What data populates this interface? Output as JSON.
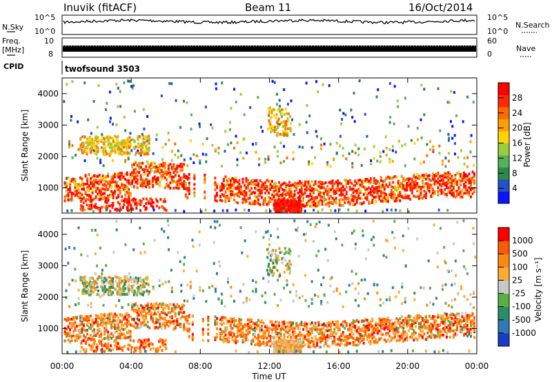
{
  "header": {
    "station": "Inuvik (fitACF)",
    "beam": "Beam 11",
    "date": "16/Oct/2014"
  },
  "status_panel": {
    "nsky_label": "N.Sky",
    "nsearch_label": "N.Search",
    "nsky_ticks": [
      "10^5",
      "10^0"
    ],
    "nsearch_ticks": [
      "10^5",
      "10^0"
    ],
    "freq_label_top": "Freq.",
    "freq_label_unit": "[MHz]",
    "freq_ticks": [
      "10",
      "8"
    ],
    "nave_label": "Nave",
    "nave_ticks": [
      "60",
      "0"
    ],
    "cpid_label": "CPID",
    "cpid_value": "twofsound 3503"
  },
  "chart_data": [
    {
      "type": "heatmap",
      "panel": "power",
      "ylabel": "Slant Range [km]",
      "yticks": [
        "1000",
        "2000",
        "3000",
        "4000"
      ],
      "ylim": [
        200,
        4500
      ],
      "xlim": [
        0,
        24
      ],
      "colorbar_label": "Power [dB]",
      "colorbar_ticks": [
        "4",
        "8",
        "12",
        "16",
        "20",
        "24",
        "28"
      ],
      "colorbar_colors": [
        "#0a14ff",
        "#2850c8",
        "#2a8a4a",
        "#58b058",
        "#9acd3a",
        "#ffd400",
        "#ffa000",
        "#ff6a00",
        "#ff2a00",
        "#ff0000"
      ]
    },
    {
      "type": "heatmap",
      "panel": "velocity",
      "ylabel": "Slant Range [km]",
      "yticks": [
        "1000",
        "2000",
        "3000",
        "4000"
      ],
      "ylim": [
        200,
        4500
      ],
      "xlim": [
        0,
        24
      ],
      "colorbar_label": "Velocity [m s⁻¹]",
      "colorbar_ticks": [
        "1000",
        "500",
        "100",
        "25",
        "-25",
        "-100",
        "-500",
        "-1000"
      ],
      "colorbar_colors": [
        "#1a3cc8",
        "#2e7ab4",
        "#2a8c6a",
        "#5ab040",
        "#c8c8c8",
        "#ffaa30",
        "#ff8a10",
        "#ff5a00",
        "#ff0000"
      ]
    }
  ],
  "xaxis": {
    "ticks": [
      "00:00",
      "04:00",
      "08:00",
      "12:00",
      "16:00",
      "20:00",
      "00:00"
    ],
    "label": "Time UT"
  }
}
